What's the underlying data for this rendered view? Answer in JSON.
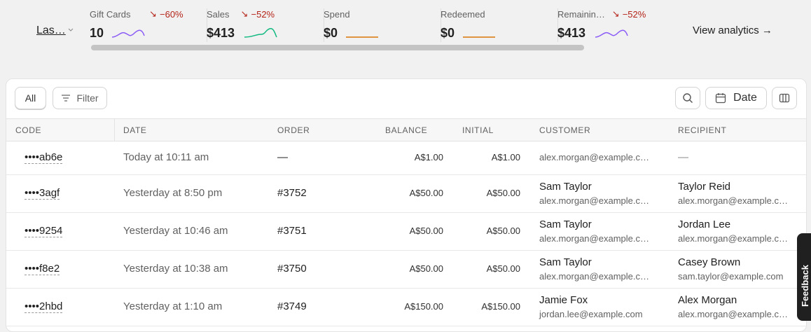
{
  "header": {
    "period": "Las…",
    "view_analytics": "View analytics →",
    "metrics": [
      {
        "label": "Gift Cards",
        "change": "−60%",
        "value": "10",
        "color": "#8b5cf6"
      },
      {
        "label": "Sales",
        "change": "−52%",
        "value": "$413",
        "color": "#10b981"
      },
      {
        "label": "Spend",
        "value": "$0",
        "color": "#d97706"
      },
      {
        "label": "Redeemed",
        "value": "$0",
        "color": "#d97706"
      },
      {
        "label": "Remainin…",
        "change": "−52%",
        "value": "$413",
        "color": "#8b5cf6"
      }
    ]
  },
  "toolbar": {
    "all": "All",
    "filter": "Filter",
    "date": "Date"
  },
  "table": {
    "columns": [
      "CODE",
      "DATE",
      "ORDER",
      "BALANCE",
      "INITIAL",
      "CUSTOMER",
      "RECIPIENT"
    ],
    "rows": [
      {
        "code": "••••ab6e",
        "date": "Today at 10:11 am",
        "order": "—",
        "balance": "A$1.00",
        "initial": "A$1.00",
        "customer": {
          "email": "alex.morgan@example.c…"
        },
        "recipient": {
          "name": "—"
        }
      },
      {
        "code": "••••3agf",
        "date": "Yesterday at 8:50 pm",
        "order": "#3752",
        "balance": "A$50.00",
        "initial": "A$50.00",
        "customer": {
          "name": "Sam Taylor",
          "email": "alex.morgan@example.c…"
        },
        "recipient": {
          "name": "Taylor Reid",
          "email": "alex.morgan@example.c…"
        }
      },
      {
        "code": "••••9254",
        "date": "Yesterday at 10:46 am",
        "order": "#3751",
        "balance": "A$50.00",
        "initial": "A$50.00",
        "customer": {
          "name": "Sam Taylor",
          "email": "alex.morgan@example.c…"
        },
        "recipient": {
          "name": "Jordan Lee",
          "email": "alex.morgan@example.c…"
        }
      },
      {
        "code": "••••f8e2",
        "date": "Yesterday at 10:38 am",
        "order": "#3750",
        "balance": "A$50.00",
        "initial": "A$50.00",
        "customer": {
          "name": "Sam Taylor",
          "email": "alex.morgan@example.c…"
        },
        "recipient": {
          "name": "Casey Brown",
          "email": "sam.taylor@example.com"
        }
      },
      {
        "code": "••••2hbd",
        "date": "Yesterday at 1:10 am",
        "order": "#3749",
        "balance": "A$150.00",
        "initial": "A$150.00",
        "customer": {
          "name": "Jamie Fox",
          "email": "jordan.lee@example.com"
        },
        "recipient": {
          "name": "Alex Morgan",
          "email": "alex.morgan@example.c…"
        }
      }
    ]
  },
  "feedback": "Feedback"
}
